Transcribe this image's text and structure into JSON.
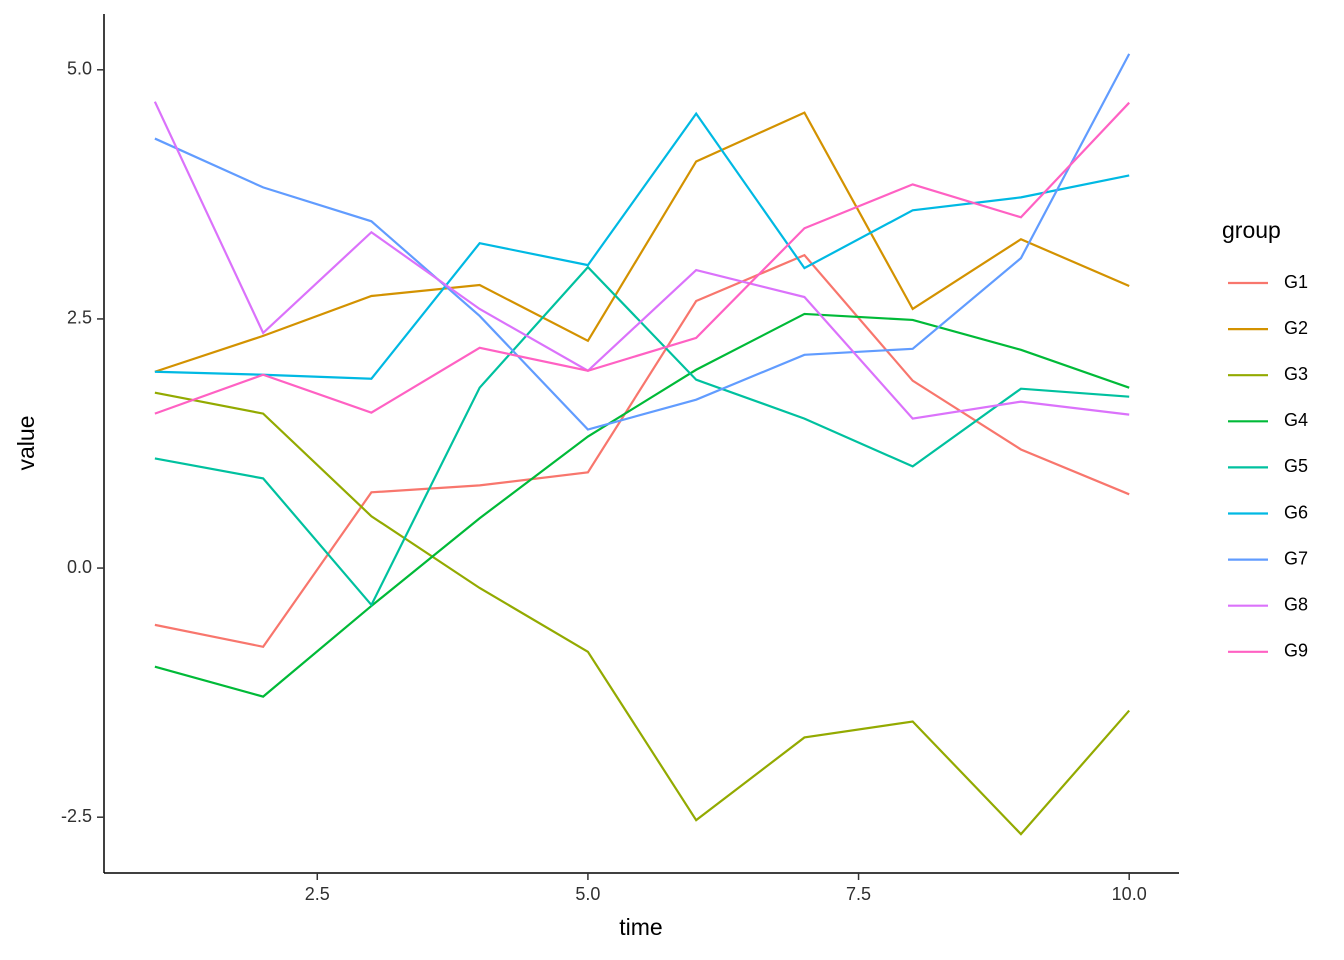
{
  "chart_data": {
    "type": "line",
    "x_label": "time",
    "y_label": "value",
    "legend_title": "group",
    "x": [
      1,
      2,
      3,
      4,
      5,
      6,
      7,
      8,
      9,
      10
    ],
    "series": [
      {
        "name": "G1",
        "color": "#F8766D",
        "values": [
          -0.57,
          -0.79,
          0.76,
          0.83,
          0.96,
          2.68,
          3.14,
          1.88,
          1.19,
          0.74
        ]
      },
      {
        "name": "G2",
        "color": "#D39200",
        "values": [
          1.97,
          2.33,
          2.73,
          2.84,
          2.28,
          4.08,
          4.57,
          2.6,
          3.3,
          2.83
        ]
      },
      {
        "name": "G3",
        "color": "#93AA00",
        "values": [
          1.76,
          1.55,
          0.52,
          -0.2,
          -0.84,
          -2.53,
          -1.7,
          -1.54,
          -2.67,
          -1.43
        ]
      },
      {
        "name": "G4",
        "color": "#00BA38",
        "values": [
          -0.99,
          -1.29,
          -0.38,
          0.5,
          1.32,
          1.99,
          2.55,
          2.49,
          2.19,
          1.81
        ]
      },
      {
        "name": "G5",
        "color": "#00C19F",
        "values": [
          1.1,
          0.9,
          -0.37,
          1.81,
          3.02,
          1.89,
          1.5,
          1.02,
          1.8,
          1.72
        ]
      },
      {
        "name": "G6",
        "color": "#00B9E3",
        "values": [
          1.97,
          1.94,
          1.9,
          3.26,
          3.04,
          4.56,
          3.01,
          3.59,
          3.72,
          3.94
        ]
      },
      {
        "name": "G7",
        "color": "#619CFF",
        "values": [
          4.31,
          3.82,
          3.48,
          2.53,
          1.39,
          1.69,
          2.14,
          2.2,
          3.11,
          5.16
        ]
      },
      {
        "name": "G8",
        "color": "#DB72FB",
        "values": [
          4.68,
          2.36,
          3.37,
          2.6,
          1.98,
          2.99,
          2.72,
          1.5,
          1.67,
          1.54
        ]
      },
      {
        "name": "G9",
        "color": "#FF61C3",
        "values": [
          1.55,
          1.94,
          1.56,
          2.21,
          1.98,
          2.31,
          3.41,
          3.85,
          3.52,
          4.67
        ]
      }
    ],
    "xlim": [
      0.53,
      10.46
    ],
    "ylim": [
      -3.06,
      5.56
    ],
    "xticks": [
      2.5,
      {
        "value": 5,
        "label": "5.0"
      },
      {
        "value": 7.5,
        "label": "7.5"
      },
      {
        "value": 10,
        "label": "10.0"
      }
    ],
    "yticks": [
      -2.5,
      {
        "value": 0,
        "label": "0.0"
      },
      2.5,
      {
        "value": 5,
        "label": "5.0"
      }
    ],
    "grid": false,
    "legend": "right"
  }
}
